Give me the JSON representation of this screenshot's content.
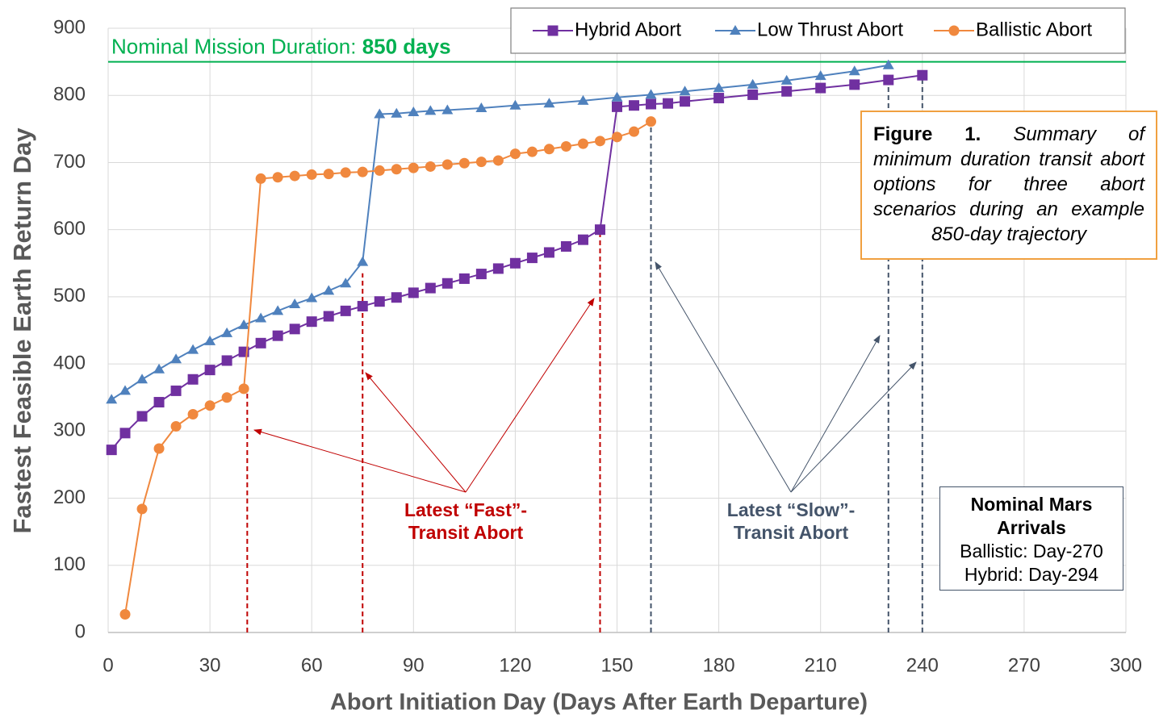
{
  "chart_data": {
    "type": "line",
    "xlabel": "Abort Initiation Day (Days After Earth Departure)",
    "ylabel": "Fastest Feasible Earth Return Day",
    "xlim": [
      0,
      300
    ],
    "xticks": [
      0,
      30,
      60,
      90,
      120,
      150,
      180,
      210,
      240,
      270,
      300
    ],
    "ylim": [
      0,
      900
    ],
    "yticks": [
      0,
      100,
      200,
      300,
      400,
      500,
      600,
      700,
      800,
      900
    ],
    "grid": true,
    "legend": "top",
    "series": [
      {
        "name": "Hybrid Abort",
        "color": "#7030a0",
        "marker": "square",
        "x": [
          1,
          5,
          10,
          15,
          20,
          25,
          30,
          35,
          40,
          45,
          50,
          55,
          60,
          65,
          70,
          75,
          80,
          85,
          90,
          95,
          100,
          105,
          110,
          115,
          120,
          125,
          130,
          135,
          140,
          145,
          150,
          155,
          160,
          165,
          170,
          180,
          190,
          200,
          210,
          220,
          230,
          240
        ],
        "values": [
          272,
          297,
          322,
          343,
          360,
          377,
          391,
          405,
          418,
          431,
          442,
          452,
          463,
          471,
          479,
          486,
          493,
          499,
          506,
          513,
          520,
          527,
          534,
          542,
          550,
          558,
          566,
          575,
          585,
          600,
          783,
          785,
          787,
          788,
          791,
          796,
          801,
          806,
          811,
          816,
          823,
          830
        ]
      },
      {
        "name": "Low Thrust Abort",
        "color": "#4f81bd",
        "marker": "triangle",
        "x": [
          1,
          5,
          10,
          15,
          20,
          25,
          30,
          35,
          40,
          45,
          50,
          55,
          60,
          65,
          70,
          75,
          80,
          85,
          90,
          95,
          100,
          110,
          120,
          130,
          140,
          150,
          160,
          170,
          180,
          190,
          200,
          210,
          220,
          230
        ],
        "values": [
          347,
          360,
          377,
          392,
          407,
          421,
          434,
          446,
          458,
          468,
          479,
          489,
          498,
          509,
          520,
          552,
          772,
          773,
          775,
          777,
          778,
          781,
          785,
          788,
          792,
          797,
          801,
          806,
          811,
          816,
          822,
          829,
          836,
          845
        ]
      },
      {
        "name": "Ballistic Abort",
        "color": "#f0883e",
        "marker": "circle",
        "x": [
          5,
          10,
          15,
          20,
          25,
          30,
          35,
          40,
          45,
          50,
          55,
          60,
          65,
          70,
          75,
          80,
          85,
          90,
          95,
          100,
          105,
          110,
          115,
          120,
          125,
          130,
          135,
          140,
          145,
          150,
          155,
          160
        ],
        "values": [
          27,
          184,
          274,
          307,
          325,
          338,
          350,
          363,
          676,
          678,
          680,
          682,
          683,
          685,
          686,
          688,
          690,
          692,
          694,
          697,
          699,
          701,
          703,
          713,
          716,
          720,
          724,
          728,
          732,
          738,
          746,
          761
        ]
      }
    ],
    "reference_line": {
      "value": 850,
      "color": "#00b050",
      "label": "Nominal Mission Duration:",
      "value_label": "850 days"
    },
    "drop_lines": [
      {
        "x": 41,
        "y": 363,
        "color": "#c00000"
      },
      {
        "x": 75,
        "y": 535,
        "color": "#c00000"
      },
      {
        "x": 145,
        "y": 600,
        "color": "#c00000"
      },
      {
        "x": 160,
        "y": 761,
        "color": "#44546a"
      },
      {
        "x": 230,
        "y": 823,
        "color": "#44546a"
      },
      {
        "x": 240,
        "y": 830,
        "color": "#44546a"
      }
    ],
    "annotations": [
      {
        "lines": [
          "Latest “Fast”-",
          "Transit Abort"
        ],
        "color": "#c00000"
      },
      {
        "lines": [
          "Latest “Slow”-",
          "Transit Abort"
        ],
        "color": "#44546a"
      }
    ]
  },
  "caption": {
    "label": "Figure 1.",
    "text": "Summary of minimum duration transit abort options for three abort scenarios during an example 850-day trajectory"
  },
  "mars_box": {
    "title": [
      "Nominal Mars",
      "Arrivals"
    ],
    "lines": [
      "Ballistic: Day-270",
      "Hybrid: Day-294"
    ]
  }
}
